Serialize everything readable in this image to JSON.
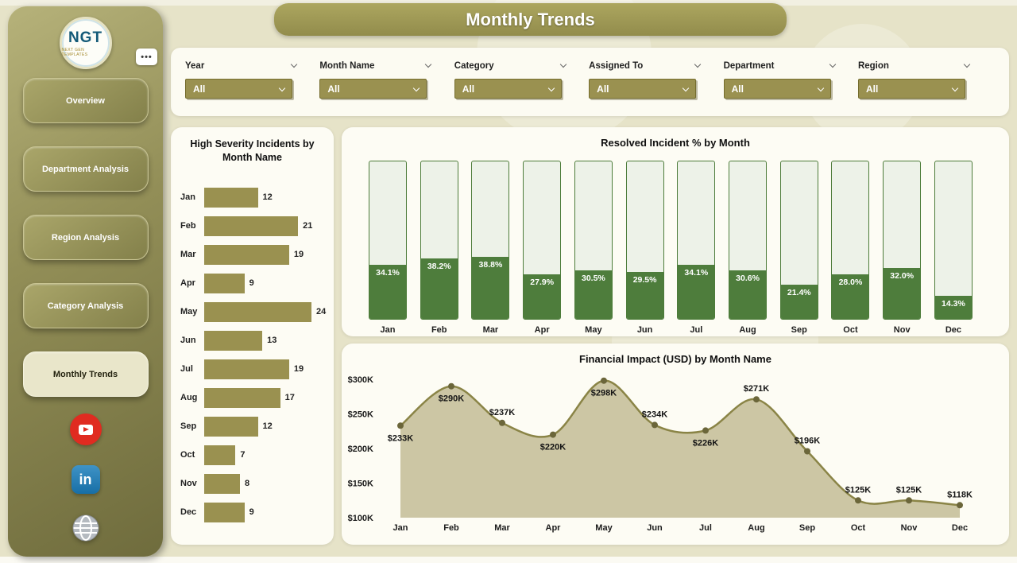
{
  "app": {
    "title": "Monthly Trends"
  },
  "colors": {
    "background": "#e6e3c8",
    "olive_accent": "#9a9150",
    "header_olive": "#9c964f",
    "green_fill": "#4e7d3c",
    "green_border": "#4d7c3a",
    "area_fill": "#c6c09b",
    "line_color": "#8a8446",
    "marker_color": "#6b663a",
    "youtube_red": "#e02b20",
    "linkedin_blue": "#1c7fb5"
  },
  "sidebar": {
    "logo_text": "NGT",
    "logo_subtext": "NEXT GEN TEMPLATES",
    "more_button": "•••",
    "linkedin_label": "in",
    "items": [
      {
        "label": "Overview",
        "active": false
      },
      {
        "label": "Department Analysis",
        "active": false
      },
      {
        "label": "Region Analysis",
        "active": false
      },
      {
        "label": "Category Analysis",
        "active": false
      },
      {
        "label": "Monthly Trends",
        "active": true
      }
    ]
  },
  "filters": {
    "items": [
      {
        "label": "Year",
        "value": "All"
      },
      {
        "label": "Month Name",
        "value": "All"
      },
      {
        "label": "Category",
        "value": "All"
      },
      {
        "label": "Assigned To",
        "value": "All"
      },
      {
        "label": "Department",
        "value": "All"
      },
      {
        "label": "Region",
        "value": "All"
      }
    ]
  },
  "months": [
    "Jan",
    "Feb",
    "Mar",
    "Apr",
    "May",
    "Jun",
    "Jul",
    "Aug",
    "Sep",
    "Oct",
    "Nov",
    "Dec"
  ],
  "chart_data": [
    {
      "id": "high_severity",
      "type": "bar",
      "orientation": "horizontal",
      "title": "High Severity Incidents by Month Name",
      "categories": [
        "Jan",
        "Feb",
        "Mar",
        "Apr",
        "May",
        "Jun",
        "Jul",
        "Aug",
        "Sep",
        "Oct",
        "Nov",
        "Dec"
      ],
      "values": [
        12,
        21,
        19,
        9,
        24,
        13,
        19,
        17,
        12,
        7,
        8,
        9
      ],
      "xlim": [
        0,
        24
      ],
      "bar_color": "#9a9150"
    },
    {
      "id": "resolved_pct",
      "type": "bar",
      "title": "Resolved Incident % by Month",
      "categories": [
        "Jan",
        "Feb",
        "Mar",
        "Apr",
        "May",
        "Jun",
        "Jul",
        "Aug",
        "Sep",
        "Oct",
        "Nov",
        "Dec"
      ],
      "values": [
        34.1,
        38.2,
        38.8,
        27.9,
        30.5,
        29.5,
        34.1,
        30.6,
        21.4,
        28.0,
        32.0,
        14.3
      ],
      "values_display": [
        "34.1%",
        "38.2%",
        "38.8%",
        "27.9%",
        "30.5%",
        "29.5%",
        "34.1%",
        "30.6%",
        "21.4%",
        "28.0%",
        "32.0%",
        "14.3%"
      ],
      "ylim": [
        0,
        100
      ],
      "fill_color": "#4e7d3c",
      "track_color": "#edf2e8",
      "outline_color": "#4d7c3a"
    },
    {
      "id": "financial_impact",
      "type": "area",
      "title": "Financial Impact (USD) by Month Name",
      "categories": [
        "Jan",
        "Feb",
        "Mar",
        "Apr",
        "May",
        "Jun",
        "Jul",
        "Aug",
        "Sep",
        "Oct",
        "Nov",
        "Dec"
      ],
      "values_k_usd": [
        233,
        290,
        237,
        220,
        298,
        234,
        226,
        271,
        196,
        125,
        125,
        118
      ],
      "point_labels": [
        "$233K",
        "$290K",
        "$237K",
        "$220K",
        "$298K",
        "$234K",
        "$226K",
        "$271K",
        "$196K",
        "$125K",
        "$125K",
        "$118K"
      ],
      "y_ticks": [
        100,
        150,
        200,
        250,
        300
      ],
      "y_tick_labels": [
        "$100K",
        "$150K",
        "$200K",
        "$250K",
        "$300K"
      ],
      "ylim": [
        100,
        310
      ],
      "label_side": [
        "below",
        "below",
        "above",
        "below",
        "below",
        "above",
        "below",
        "above",
        "above",
        "above",
        "above",
        "above"
      ],
      "line_color": "#8a8446",
      "area_color": "#c6c09b",
      "marker_color": "#6b663a"
    }
  ]
}
